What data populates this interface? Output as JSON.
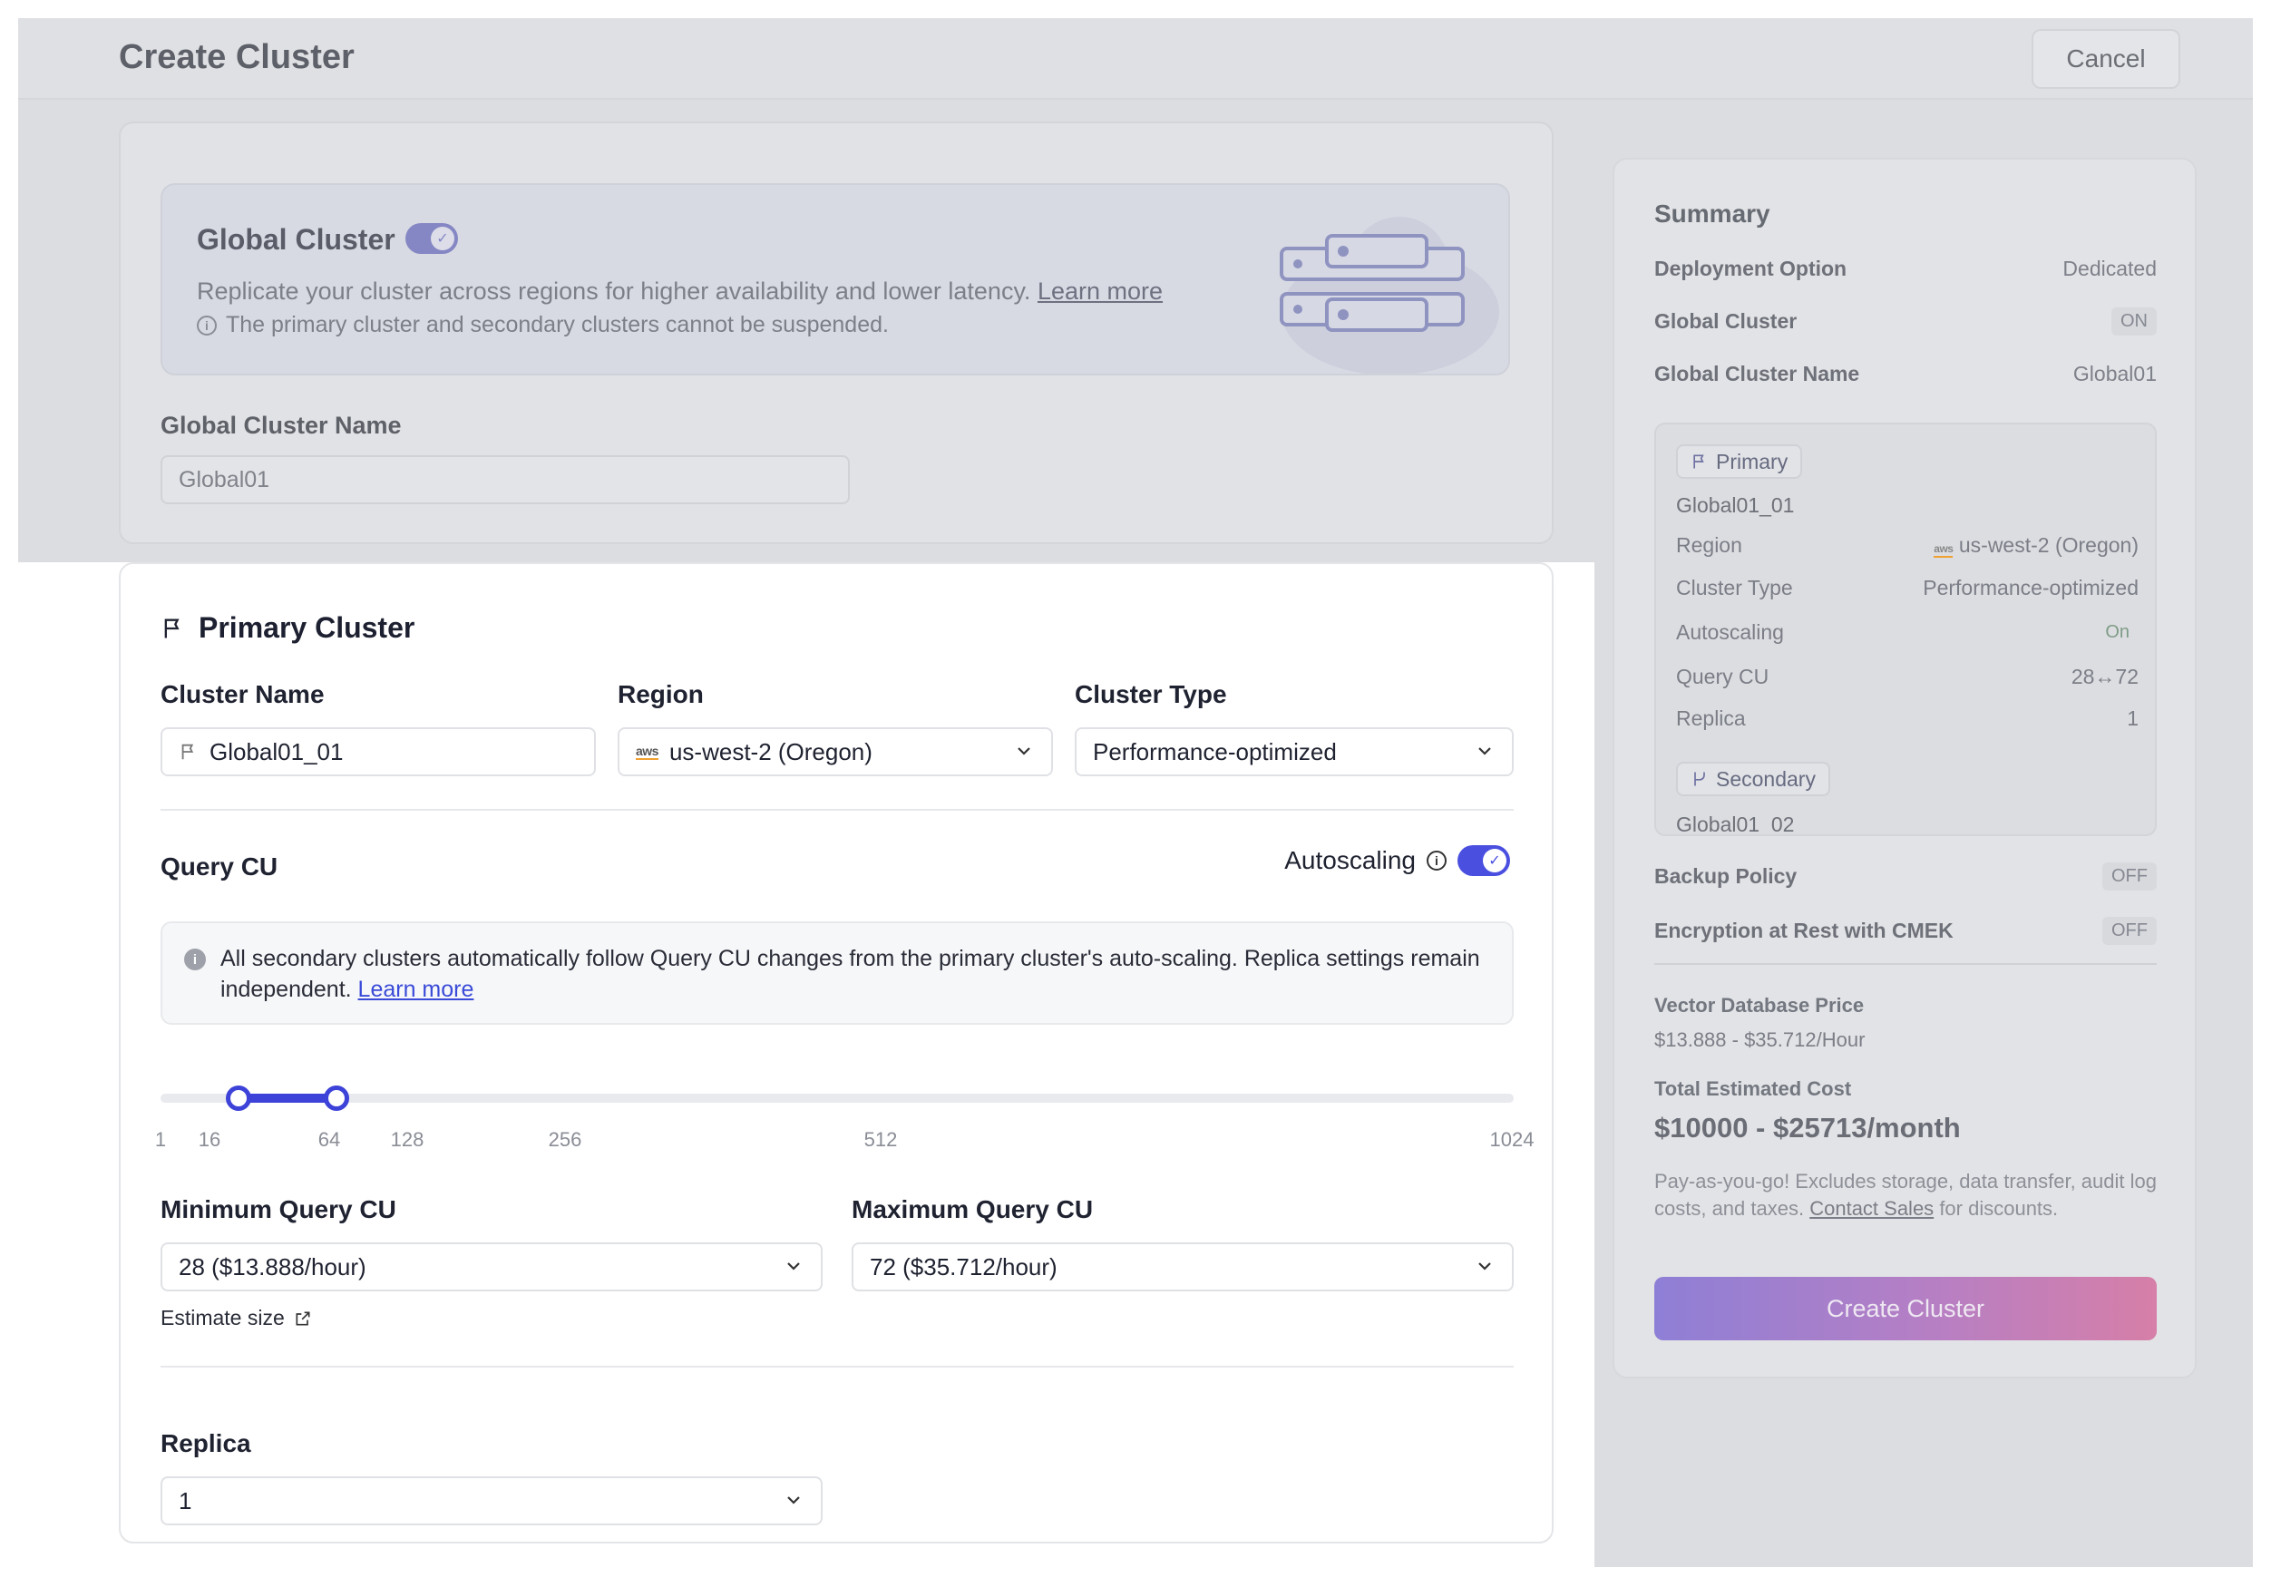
{
  "header": {
    "title": "Create Cluster",
    "cancel_label": "Cancel"
  },
  "global": {
    "title": "Global Cluster",
    "toggle_on": true,
    "description": "Replicate your cluster across regions for higher availability and lower latency.",
    "learn_more": "Learn more",
    "note": "The primary cluster and secondary clusters cannot be suspended.",
    "name_label": "Global Cluster Name",
    "name_value": "Global01"
  },
  "primary": {
    "title": "Primary Cluster",
    "cluster_name_label": "Cluster Name",
    "cluster_name_value": "Global01_01",
    "region_label": "Region",
    "region_value": "us-west-2 (Oregon)",
    "region_provider_icon": "aws",
    "cluster_type_label": "Cluster Type",
    "cluster_type_value": "Performance-optimized",
    "query_cu_label": "Query CU",
    "autoscaling_label": "Autoscaling",
    "autoscaling_on": true,
    "info_text": "All secondary clusters automatically follow Query CU changes from the primary cluster's auto-scaling. Replica settings remain independent.",
    "info_link": "Learn more",
    "slider": {
      "ticks": [
        "1",
        "16",
        "64",
        "128",
        "256",
        "512",
        "1024"
      ],
      "min": 28,
      "max": 72
    },
    "min_label": "Minimum Query CU",
    "min_value": "28 ($13.888/hour)",
    "max_label": "Maximum Query CU",
    "max_value": "72 ($35.712/hour)",
    "estimate_label": "Estimate size",
    "replica_label": "Replica",
    "replica_value": "1"
  },
  "summary": {
    "title": "Summary",
    "deployment_label": "Deployment Option",
    "deployment_value": "Dedicated",
    "global_label": "Global Cluster",
    "global_value": "ON",
    "global_name_label": "Global Cluster Name",
    "global_name_value": "Global01",
    "primary_tag": "Primary",
    "primary_name": "Global01_01",
    "region_label": "Region",
    "region_value": "us-west-2 (Oregon)",
    "type_label": "Cluster Type",
    "type_value": "Performance-optimized",
    "autoscaling_label": "Autoscaling",
    "autoscaling_value": "On",
    "qcu_label": "Query CU",
    "qcu_value": "28↔72",
    "replica_label": "Replica",
    "replica_value": "1",
    "secondary_tag": "Secondary",
    "secondary_name": "Global01_02",
    "backup_label": "Backup Policy",
    "backup_value": "OFF",
    "encryption_label": "Encryption at Rest with CMEK",
    "encryption_value": "OFF",
    "vdb_price_label": "Vector Database Price",
    "vdb_price_value": "$13.888 - $35.712/Hour",
    "total_label": "Total Estimated Cost",
    "total_value": "$10000 - $25713/month",
    "note_text": "Pay-as-you-go! Excludes storage, data transfer, audit log costs, and taxes.",
    "note_link": "Contact Sales",
    "note_tail": "for discounts.",
    "create_label": "Create Cluster"
  },
  "colors": {
    "accent": "#3d42d8",
    "button_gradient_start": "#8e7fd6",
    "button_gradient_end": "#d67fa8"
  }
}
